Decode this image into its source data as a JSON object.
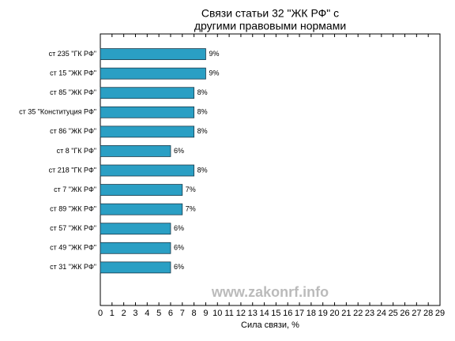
{
  "chart_data": {
    "type": "barh",
    "title": [
      "Связи статьи 32 \"ЖК РФ\" с",
      "другими правовыми нормами"
    ],
    "xlabel": "Сила связи, %",
    "categories": [
      "ст 235 \"ГК РФ\"",
      "ст 15 \"ЖК РФ\"",
      "ст 85 \"ЖК РФ\"",
      "ст 35 \"Конституция РФ\"",
      "ст 86 \"ЖК РФ\"",
      "ст 8 \"ГК РФ\"",
      "ст 218 \"ГК РФ\"",
      "ст 7 \"ЖК РФ\"",
      "ст 89 \"ЖК РФ\"",
      "ст 57 \"ЖК РФ\"",
      "ст 49 \"ЖК РФ\"",
      "ст 31 \"ЖК РФ\""
    ],
    "values": [
      9,
      9,
      8,
      8,
      8,
      6,
      8,
      7,
      7,
      6,
      6,
      6
    ],
    "value_labels": [
      "9%",
      "9%",
      "8%",
      "8%",
      "8%",
      "6%",
      "8%",
      "7%",
      "7%",
      "6%",
      "6%",
      "6%"
    ],
    "color": "#2a9fc4",
    "xlim": [
      0,
      29
    ],
    "xticks": [
      0,
      1,
      2,
      3,
      4,
      5,
      6,
      7,
      8,
      9,
      10,
      11,
      12,
      13,
      14,
      15,
      16,
      17,
      18,
      19,
      20,
      21,
      22,
      23,
      24,
      25,
      26,
      27,
      28,
      29
    ],
    "watermark": "www.zakonrf.info"
  }
}
